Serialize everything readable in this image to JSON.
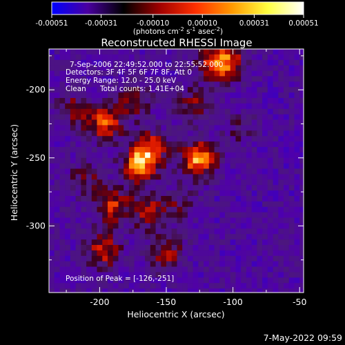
{
  "colorbar": {
    "tick_labels": [
      "-0.00051",
      "-0.00031",
      "-0.00010",
      "0.00010",
      "0.00031",
      "0.00051"
    ],
    "tick_values": [
      -0.00051,
      -0.00031,
      -0.0001,
      0.0001,
      0.00031,
      0.00051
    ],
    "range": [
      -0.00051,
      0.00051
    ],
    "units_main": "(photons cm",
    "units_exp1": "-2",
    "units_mid": " s",
    "units_exp2": "-1",
    "units_end": " asec",
    "units_exp3": "-2",
    "units_close": ")",
    "colors": [
      "#0000ff",
      "#4a00a0",
      "#000000",
      "#a00000",
      "#ff3000",
      "#ff9900",
      "#ffff40",
      "#ffffff"
    ]
  },
  "annotations": {
    "line1": "7-Sep-2006 22:49:52.000 to 22:55:52.000",
    "line2": "Detectors: 3F 4F 5F 6F 7F 8F, Att 0",
    "line3": "Energy Range: 12.0 - 25.0 keV",
    "line4a": "Clean",
    "line4b": "Total counts: 1.41E+04",
    "peak": "Position of Peak = [-126,-251]"
  },
  "timestamp": "7-May-2022 09:59",
  "chart_data": {
    "type": "heatmap",
    "title": "Reconstructed RHESSI Image",
    "xlabel": "Heliocentric X (arcsec)",
    "ylabel": "Heliocentric Y (arcsec)",
    "xlim": [
      -238,
      -47
    ],
    "ylim": [
      -349,
      -170
    ],
    "xticks": [
      -200,
      -150,
      -100,
      -50
    ],
    "xtick_labels": [
      "-200",
      "-150",
      "-100",
      "-50"
    ],
    "yticks": [
      -200,
      -250,
      -300
    ],
    "ytick_labels": [
      "-200",
      "-250",
      "-300"
    ],
    "peak": [
      -126,
      -251
    ],
    "hotspots": [
      {
        "x": -126,
        "y": -251,
        "value": 0.00051
      },
      {
        "x": -170,
        "y": -255,
        "value": 0.00045
      },
      {
        "x": -196,
        "y": -224,
        "value": 0.0004
      },
      {
        "x": -162,
        "y": -243,
        "value": 0.00036
      },
      {
        "x": -190,
        "y": -285,
        "value": 0.00033
      },
      {
        "x": -197,
        "y": -318,
        "value": 0.00034
      },
      {
        "x": -163,
        "y": -290,
        "value": 0.0003
      },
      {
        "x": -150,
        "y": -320,
        "value": 0.00026
      },
      {
        "x": -103,
        "y": -178,
        "value": 0.00034
      },
      {
        "x": -115,
        "y": -182,
        "value": 0.0003
      },
      {
        "x": -220,
        "y": -215,
        "value": 0.00022
      },
      {
        "x": -130,
        "y": -212,
        "value": 0.00024
      },
      {
        "x": -175,
        "y": -208,
        "value": 0.00022
      },
      {
        "x": -95,
        "y": -230,
        "value": 0.00012
      },
      {
        "x": -140,
        "y": -285,
        "value": 0.00016
      },
      {
        "x": -210,
        "y": -265,
        "value": 0.00018
      }
    ]
  }
}
